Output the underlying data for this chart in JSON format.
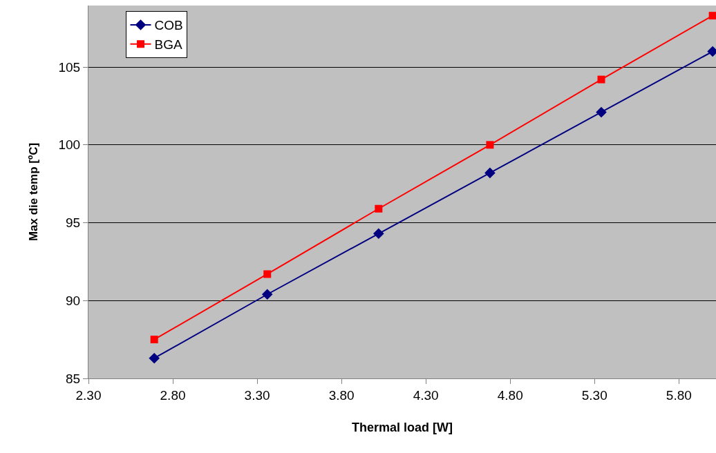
{
  "chart_data": {
    "type": "line",
    "xlabel": "Thermal load [W]",
    "ylabel": "Max die temp [ºC]",
    "xlim": [
      2.3,
      6.02
    ],
    "xticks": [
      {
        "value": 2.3,
        "label": "2.30"
      },
      {
        "value": 2.8,
        "label": "2.80"
      },
      {
        "value": 3.3,
        "label": "3.30"
      },
      {
        "value": 3.8,
        "label": "3.80"
      },
      {
        "value": 4.3,
        "label": "4.30"
      },
      {
        "value": 4.8,
        "label": "4.80"
      },
      {
        "value": 5.3,
        "label": "5.30"
      },
      {
        "value": 5.8,
        "label": "5.80"
      }
    ],
    "ylim": [
      85,
      108.95
    ],
    "yticks": [
      85,
      90,
      95,
      100,
      105
    ],
    "x": [
      2.69,
      3.36,
      4.02,
      4.68,
      5.34,
      6.0
    ],
    "series": [
      {
        "name": "COB",
        "color": "#000080",
        "marker": "diamond",
        "values": [
          86.3,
          90.4,
          94.3,
          98.2,
          102.1,
          106.0
        ]
      },
      {
        "name": "BGA",
        "color": "#ff0000",
        "marker": "square",
        "values": [
          87.5,
          91.7,
          95.9,
          100.0,
          104.2,
          108.3
        ]
      }
    ],
    "grid": "y",
    "legend": "top left",
    "line_style": "solid"
  }
}
